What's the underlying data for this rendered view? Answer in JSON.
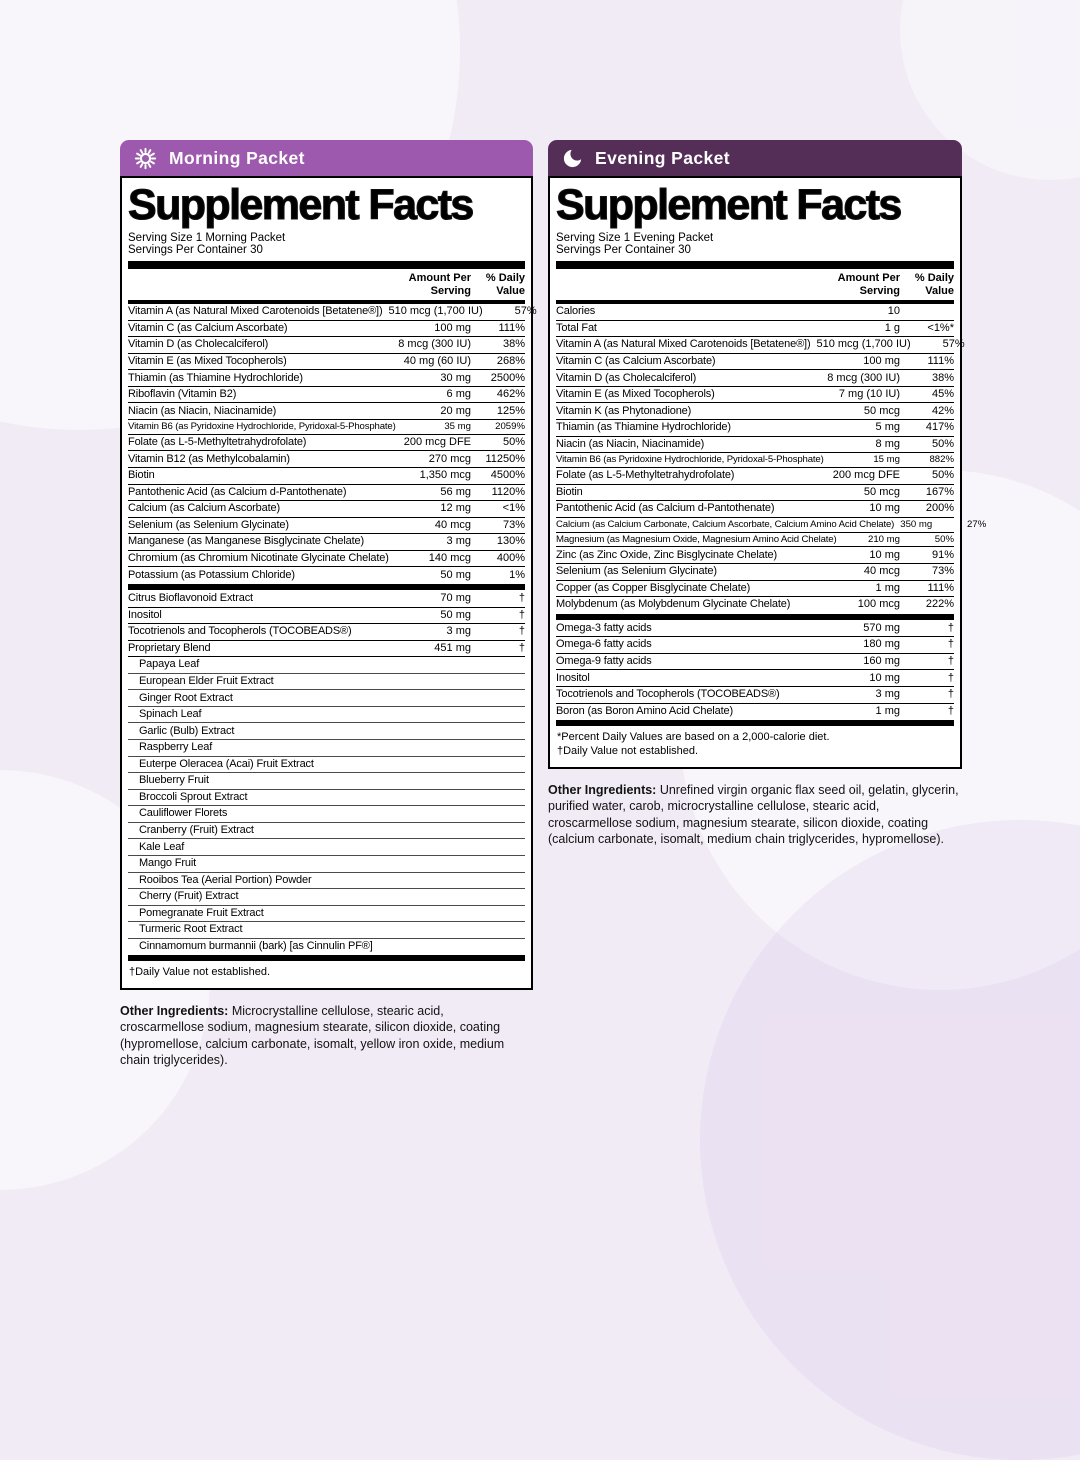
{
  "theme": {
    "page_background": "#f1ebf6",
    "morning_header_color": "#9c59ad",
    "evening_header_color": "#542e57",
    "header_text_color": "#ffffff"
  },
  "panels": [
    {
      "id": "morning",
      "header": {
        "icon": "sun-icon",
        "label": "Morning Packet"
      },
      "title": "Supplement Facts",
      "serving_size": "Serving Size 1 Morning Packet",
      "servings_per_container": "Servings Per Container 30",
      "columns": {
        "amount": "Amount Per\nServing",
        "daily": "% Daily\nValue"
      },
      "sections": [
        {
          "rows": [
            {
              "name": "Vitamin A (as Natural Mixed Carotenoids [Betatene®])",
              "amount": "510 mcg (1,700 IU)",
              "pct": "57%"
            },
            {
              "name": "Vitamin C (as Calcium Ascorbate)",
              "amount": "100 mg",
              "pct": "111%"
            },
            {
              "name": "Vitamin D (as Cholecalciferol)",
              "amount": "8 mcg (300 IU)",
              "pct": "38%"
            },
            {
              "name": "Vitamin E (as Mixed Tocopherols)",
              "amount": "40 mg (60 IU)",
              "pct": "268%"
            },
            {
              "name": "Thiamin (as Thiamine Hydrochloride)",
              "amount": "30 mg",
              "pct": "2500%"
            },
            {
              "name": "Riboflavin (Vitamin B2)",
              "amount": "6 mg",
              "pct": "462%"
            },
            {
              "name": "Niacin (as Niacin, Niacinamide)",
              "amount": "20 mg",
              "pct": "125%"
            },
            {
              "name": "Vitamin B6 (as Pyridoxine Hydrochloride, Pyridoxal-5-Phosphate)",
              "amount": "35 mg",
              "pct": "2059%",
              "small": true
            },
            {
              "name": "Folate (as L-5-Methyltetrahydrofolate)",
              "amount": "200 mcg DFE",
              "pct": "50%"
            },
            {
              "name": "Vitamin B12 (as Methylcobalamin)",
              "amount": "270 mcg",
              "pct": "11250%"
            },
            {
              "name": "Biotin",
              "amount": "1,350 mcg",
              "pct": "4500%"
            },
            {
              "name": "Pantothenic Acid (as Calcium d-Pantothenate)",
              "amount": "56 mg",
              "pct": "1120%"
            },
            {
              "name": "Calcium (as Calcium Ascorbate)",
              "amount": "12 mg",
              "pct": "<1%"
            },
            {
              "name": "Selenium (as Selenium Glycinate)",
              "amount": "40 mcg",
              "pct": "73%"
            },
            {
              "name": "Manganese (as Manganese Bisglycinate Chelate)",
              "amount": "3 mg",
              "pct": "130%"
            },
            {
              "name": "Chromium (as Chromium Nicotinate Glycinate Chelate)",
              "amount": "140 mcg",
              "pct": "400%"
            },
            {
              "name": "Potassium (as Potassium Chloride)",
              "amount": "50 mg",
              "pct": "1%"
            }
          ]
        },
        {
          "rows": [
            {
              "name": "Citrus Bioflavonoid Extract",
              "amount": "70 mg",
              "pct": "†"
            },
            {
              "name": "Inositol",
              "amount": "50 mg",
              "pct": "†"
            },
            {
              "name": "Tocotrienols and Tocopherols (TOCOBEADS®)",
              "amount": "3 mg",
              "pct": "†"
            },
            {
              "name": "Proprietary Blend",
              "amount": "451 mg",
              "pct": "†"
            },
            {
              "name": "Papaya Leaf",
              "sub": true
            },
            {
              "name": "European Elder Fruit Extract",
              "sub": true
            },
            {
              "name": "Ginger Root Extract",
              "sub": true
            },
            {
              "name": "Spinach Leaf",
              "sub": true
            },
            {
              "name": "Garlic (Bulb) Extract",
              "sub": true
            },
            {
              "name": "Raspberry Leaf",
              "sub": true
            },
            {
              "name": "Euterpe Oleracea (Acai) Fruit Extract",
              "sub": true
            },
            {
              "name": "Blueberry Fruit",
              "sub": true
            },
            {
              "name": "Broccoli Sprout Extract",
              "sub": true
            },
            {
              "name": "Cauliflower Florets",
              "sub": true
            },
            {
              "name": "Cranberry (Fruit) Extract",
              "sub": true
            },
            {
              "name": "Kale Leaf",
              "sub": true
            },
            {
              "name": "Mango Fruit",
              "sub": true
            },
            {
              "name": "Rooibos Tea (Aerial Portion) Powder",
              "sub": true
            },
            {
              "name": "Cherry (Fruit) Extract",
              "sub": true
            },
            {
              "name": "Pomegranate Fruit Extract",
              "sub": true
            },
            {
              "name": "Turmeric Root Extract",
              "sub": true
            },
            {
              "name": "Cinnamomum burmannii (bark) [as Cinnulin PF®]",
              "sub": true
            }
          ]
        }
      ],
      "footnotes": "†Daily Value not established.",
      "other_ingredients_label": "Other Ingredients:",
      "other_ingredients": " Microcrystalline cellulose, stearic acid, croscarmellose sodium, magnesium stearate, silicon dioxide, coating (hypromellose, calcium carbonate, isomalt, yellow iron oxide, medium chain triglycerides)."
    },
    {
      "id": "evening",
      "header": {
        "icon": "moon-icon",
        "label": "Evening Packet"
      },
      "title": "Supplement Facts",
      "serving_size": "Serving Size 1 Evening Packet",
      "servings_per_container": "Servings Per Container 30",
      "columns": {
        "amount": "Amount Per\nServing",
        "daily": "% Daily\nValue"
      },
      "sections": [
        {
          "rows": [
            {
              "name": "Calories",
              "amount": "10",
              "pct": ""
            },
            {
              "name": "Total Fat",
              "amount": "1 g",
              "pct": "<1%*"
            },
            {
              "name": "Vitamin A (as Natural Mixed Carotenoids [Betatene®])",
              "amount": "510 mcg (1,700 IU)",
              "pct": "57%"
            },
            {
              "name": "Vitamin C (as Calcium Ascorbate)",
              "amount": "100 mg",
              "pct": "111%"
            },
            {
              "name": "Vitamin D (as Cholecalciferol)",
              "amount": "8 mcg (300 IU)",
              "pct": "38%"
            },
            {
              "name": "Vitamin E (as Mixed Tocopherols)",
              "amount": "7 mg (10 IU)",
              "pct": "45%"
            },
            {
              "name": "Vitamin K (as Phytonadione)",
              "amount": "50 mcg",
              "pct": "42%"
            },
            {
              "name": "Thiamin (as Thiamine Hydrochloride)",
              "amount": "5 mg",
              "pct": "417%"
            },
            {
              "name": "Niacin (as Niacin, Niacinamide)",
              "amount": "8 mg",
              "pct": "50%"
            },
            {
              "name": "Vitamin B6 (as Pyridoxine Hydrochloride, Pyridoxal-5-Phosphate)",
              "amount": "15 mg",
              "pct": "882%",
              "small": true
            },
            {
              "name": "Folate (as L-5-Methyltetrahydrofolate)",
              "amount": "200 mcg DFE",
              "pct": "50%"
            },
            {
              "name": "Biotin",
              "amount": "50 mcg",
              "pct": "167%"
            },
            {
              "name": "Pantothenic Acid (as Calcium d-Pantothenate)",
              "amount": "10 mg",
              "pct": "200%"
            },
            {
              "name": "Calcium (as Calcium Carbonate, Calcium Ascorbate, Calcium Amino Acid Chelate)",
              "amount": "350 mg",
              "pct": "27%",
              "small": true
            },
            {
              "name": "Magnesium (as Magnesium Oxide, Magnesium Amino Acid Chelate)",
              "amount": "210 mg",
              "pct": "50%",
              "small": true
            },
            {
              "name": "Zinc (as Zinc Oxide, Zinc Bisglycinate Chelate)",
              "amount": "10 mg",
              "pct": "91%"
            },
            {
              "name": "Selenium (as Selenium Glycinate)",
              "amount": "40 mcg",
              "pct": "73%"
            },
            {
              "name": "Copper (as Copper Bisglycinate Chelate)",
              "amount": "1 mg",
              "pct": "111%"
            },
            {
              "name": "Molybdenum (as Molybdenum Glycinate Chelate)",
              "amount": "100 mcg",
              "pct": "222%"
            }
          ]
        },
        {
          "rows": [
            {
              "name": "Omega-3 fatty acids",
              "amount": "570 mg",
              "pct": "†"
            },
            {
              "name": "Omega-6 fatty acids",
              "amount": "180 mg",
              "pct": "†"
            },
            {
              "name": "Omega-9 fatty acids",
              "amount": "160 mg",
              "pct": "†"
            },
            {
              "name": "Inositol",
              "amount": "10 mg",
              "pct": "†"
            },
            {
              "name": "Tocotrienols and Tocopherols (TOCOBEADS®)",
              "amount": "3 mg",
              "pct": "†"
            },
            {
              "name": "Boron (as Boron Amino Acid Chelate)",
              "amount": "1 mg",
              "pct": "†"
            }
          ]
        }
      ],
      "footnotes": "*Percent Daily Values are based on a 2,000-calorie diet.\n†Daily Value not established.",
      "other_ingredients_label": "Other Ingredients:",
      "other_ingredients": " Unrefined virgin organic flax seed oil, gelatin, glycerin, purified water, carob, microcrystalline cellulose, stearic acid, croscarmellose sodium, magnesium stearate, silicon dioxide, coating (calcium carbonate, isomalt, medium chain triglycerides, hypromellose)."
    }
  ]
}
